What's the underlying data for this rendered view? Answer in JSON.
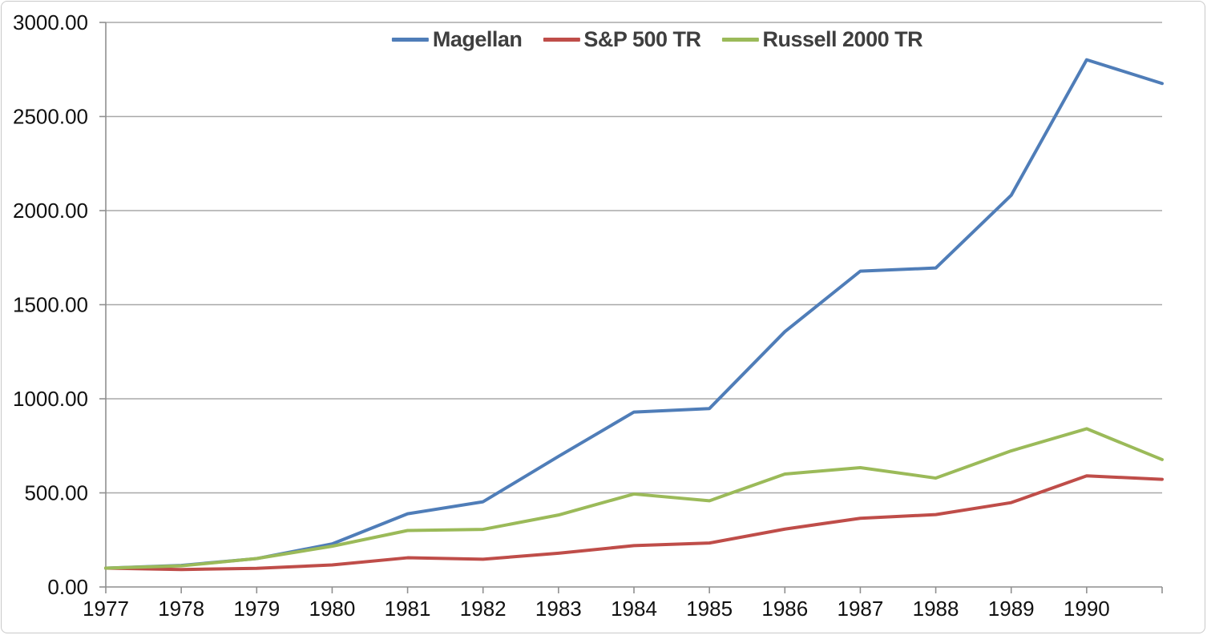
{
  "chart_data": {
    "type": "line",
    "title": "",
    "categories": [
      "1977",
      "1978",
      "1979",
      "1980",
      "1981",
      "1982",
      "1983",
      "1984",
      "1985",
      "1986",
      "1987",
      "1988",
      "1989",
      "1990",
      ""
    ],
    "series": [
      {
        "name": "Magellan",
        "color": "#4f7db8",
        "values": [
          100.0,
          114.5,
          150.8,
          228.77,
          388.68,
          452.81,
          694.0,
          929.47,
          948.06,
          1356.67,
          1678.2,
          1694.98,
          2081.44,
          2801.62,
          2675.55
        ]
      },
      {
        "name": "S&P 500 TR",
        "color": "#bf4d49",
        "values": [
          100.0,
          92.8,
          98.93,
          117.13,
          155.08,
          147.48,
          179.19,
          219.69,
          233.53,
          307.56,
          365.07,
          384.42,
          448.24,
          590.33,
          572.03
        ]
      },
      {
        "name": "Russell 2000 TR",
        "color": "#9bba59",
        "values": [
          100.0,
          112.0,
          151.0,
          216.5,
          300.0,
          306.1,
          382.4,
          493.85,
          457.8,
          600.0,
          634.1,
          578.5,
          723.3,
          840.8,
          676.9
        ]
      }
    ],
    "ylim": [
      0,
      3000
    ],
    "y_ticks": [
      {
        "value": 0,
        "label": "0.00"
      },
      {
        "value": 500,
        "label": "500.00"
      },
      {
        "value": 1000,
        "label": "1000.00"
      },
      {
        "value": 1500,
        "label": "1500.00"
      },
      {
        "value": 2000,
        "label": "2000.00"
      },
      {
        "value": 2500,
        "label": "2500.00"
      },
      {
        "value": 3000,
        "label": "3000.00"
      }
    ],
    "grid": true,
    "legend_position": "top-center"
  },
  "colors": {
    "background": "#ffffff",
    "border": "#c9c9c9",
    "gridline": "#a8a8a8",
    "axis": "#8f8f8f",
    "axis_label": "#111111",
    "legend_text": "#3f3f3f"
  }
}
